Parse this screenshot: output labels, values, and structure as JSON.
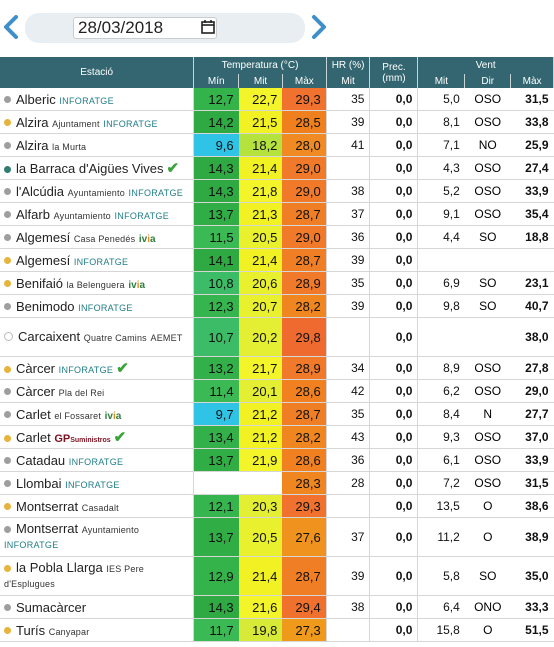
{
  "toolbar": {
    "date_value": "28/03/2018"
  },
  "colors": {
    "header_bg": "#336670",
    "header_text": "#ffffff",
    "nav_arrow": "#3f8fc8"
  },
  "table": {
    "group_headers": {
      "station": "Estació",
      "temperature": "Temperatura (°C)",
      "humidity": "HR (%)",
      "precip": "Prec. (mm)",
      "wind": "Vent"
    },
    "sub_headers": {
      "t_min": "Mín",
      "t_mid": "Mit",
      "t_max": "Màx",
      "hr_mid": "Mit",
      "w_mid": "Mit",
      "w_dir": "Dir",
      "w_max": "Màx"
    },
    "rows": [
      {
        "name": "Alberic",
        "sub": "",
        "brand": "INFORATGE",
        "dot": "#9e9e9e",
        "check": false,
        "tmin": "12,7",
        "tmid": "22,7",
        "tmax": "29,3",
        "hr": "35",
        "prec": "0,0",
        "wmid": "5,0",
        "wdir": "OSO",
        "wmax": "31,5",
        "cmin": "#34b34a",
        "cmid": "#f4f42a",
        "cmax": "#f0722e"
      },
      {
        "name": "Alzira",
        "sub": "Ajuntament",
        "brand": "INFORATGE",
        "dot": "#e6b43a",
        "check": false,
        "tmin": "14,2",
        "tmid": "21,5",
        "tmax": "28,5",
        "hr": "39",
        "prec": "0,0",
        "wmid": "8,1",
        "wdir": "OSO",
        "wmax": "33,8",
        "cmin": "#2fa942",
        "cmid": "#f1f124",
        "cmax": "#f0801e"
      },
      {
        "name": "Alzira",
        "sub": "la Murta",
        "brand": "",
        "dot": "#9e9e9e",
        "check": false,
        "tmin": "9,6",
        "tmid": "18,2",
        "tmax": "28,0",
        "hr": "41",
        "prec": "0,0",
        "wmid": "7,1",
        "wdir": "NO",
        "wmax": "25,9",
        "cmin": "#2fc4e6",
        "cmid": "#b6e23e",
        "cmax": "#f08a22"
      },
      {
        "name": "la Barraca d'Aigües Vives",
        "sub": "",
        "brand": "",
        "dot": "#2e7d6f",
        "check": true,
        "tmin": "14,3",
        "tmid": "21,4",
        "tmax": "29,0",
        "hr": "",
        "prec": "0,0",
        "wmid": "4,3",
        "wdir": "OSO",
        "wmax": "27,4",
        "cmin": "#2fa942",
        "cmid": "#f1f124",
        "cmax": "#f07a2a"
      },
      {
        "name": "l'Alcúdia",
        "sub": "Ayuntamiento",
        "brand": "INFORATGE",
        "dot": "#9e9e9e",
        "check": false,
        "tmin": "14,3",
        "tmid": "21,8",
        "tmax": "29,0",
        "hr": "38",
        "prec": "0,0",
        "wmid": "5,2",
        "wdir": "OSO",
        "wmax": "33,9",
        "cmin": "#2fa942",
        "cmid": "#f4f42a",
        "cmax": "#f07a2a"
      },
      {
        "name": "Alfarb",
        "sub": "Ayuntamiento",
        "brand": "INFORATGE",
        "dot": "#9e9e9e",
        "check": false,
        "tmin": "13,7",
        "tmid": "21,3",
        "tmax": "28,7",
        "hr": "37",
        "prec": "0,0",
        "wmid": "9,1",
        "wdir": "OSO",
        "wmax": "35,4",
        "cmin": "#31ad45",
        "cmid": "#f1f124",
        "cmax": "#f07e24"
      },
      {
        "name": "Algemesí",
        "sub": "Casa Penedés",
        "brand": "ivia",
        "dot": "#9e9e9e",
        "check": false,
        "tmin": "11,5",
        "tmid": "20,5",
        "tmax": "29,0",
        "hr": "36",
        "prec": "0,0",
        "wmid": "4,4",
        "wdir": "SO",
        "wmax": "18,8",
        "cmin": "#3ab954",
        "cmid": "#e9f02e",
        "cmax": "#f07a2a"
      },
      {
        "name": "Algemesí",
        "sub": "",
        "brand": "INFORATGE",
        "dot": "#e6b43a",
        "check": false,
        "tmin": "14,1",
        "tmid": "21,4",
        "tmax": "28,7",
        "hr": "39",
        "prec": "0,0",
        "wmid": "",
        "wdir": "",
        "wmax": "",
        "cmin": "#2fa942",
        "cmid": "#f1f124",
        "cmax": "#f07e24"
      },
      {
        "name": "Benifaió",
        "sub": "la Belenguera",
        "brand": "ivia",
        "dot": "#e6b43a",
        "check": false,
        "tmin": "10,8",
        "tmid": "20,6",
        "tmax": "28,9",
        "hr": "35",
        "prec": "0,0",
        "wmid": "6,9",
        "wdir": "SO",
        "wmax": "23,1",
        "cmin": "#3cbc66",
        "cmid": "#e9f02e",
        "cmax": "#f07a2a"
      },
      {
        "name": "Benimodo",
        "sub": "",
        "brand": "INFORATGE",
        "dot": "#9e9e9e",
        "check": false,
        "tmin": "12,3",
        "tmid": "20,7",
        "tmax": "28,2",
        "hr": "39",
        "prec": "0,0",
        "wmid": "9,8",
        "wdir": "SO",
        "wmax": "40,7",
        "cmin": "#36b54e",
        "cmid": "#e9f02e",
        "cmax": "#f08620"
      },
      {
        "name": "Carcaixent",
        "sub": "Quatre Camins",
        "brand": "AEMET",
        "dot": "#ffffff",
        "check": false,
        "tmin": "10,7",
        "tmid": "20,2",
        "tmax": "29,8",
        "hr": "",
        "prec": "0,0",
        "wmid": "",
        "wdir": "",
        "wmax": "38,0",
        "cmin": "#3cbc66",
        "cmid": "#e4ee32",
        "cmax": "#ef6a2e"
      },
      {
        "name": "Càrcer",
        "sub": "",
        "brand": "INFORATGE",
        "dot": "#e6b43a",
        "check": true,
        "tmin": "13,2",
        "tmid": "21,7",
        "tmax": "28,9",
        "hr": "34",
        "prec": "0,0",
        "wmid": "8,9",
        "wdir": "OSO",
        "wmax": "27,8",
        "cmin": "#33b04a",
        "cmid": "#f4f42a",
        "cmax": "#f07a2a"
      },
      {
        "name": "Càrcer",
        "sub": "Pla del Rei",
        "brand": "",
        "dot": "#9e9e9e",
        "check": false,
        "tmin": "11,4",
        "tmid": "20,1",
        "tmax": "28,6",
        "hr": "42",
        "prec": "0,0",
        "wmid": "6,2",
        "wdir": "OSO",
        "wmax": "29,0",
        "cmin": "#3ab954",
        "cmid": "#e4ee32",
        "cmax": "#f08020"
      },
      {
        "name": "Carlet",
        "sub": "el Fossaret",
        "brand": "ivia",
        "dot": "#9e9e9e",
        "check": false,
        "tmin": "9,7",
        "tmid": "21,2",
        "tmax": "28,7",
        "hr": "35",
        "prec": "0,0",
        "wmid": "8,4",
        "wdir": "N",
        "wmax": "27,7",
        "cmin": "#2fc4e6",
        "cmid": "#f1f124",
        "cmax": "#f07e24"
      },
      {
        "name": "Carlet",
        "sub": "",
        "brand": "GP",
        "dot": "#e6b43a",
        "check": true,
        "tmin": "13,4",
        "tmid": "21,2",
        "tmax": "28,2",
        "hr": "43",
        "prec": "0,0",
        "wmid": "9,3",
        "wdir": "OSO",
        "wmax": "37,0",
        "cmin": "#33b04a",
        "cmid": "#f1f124",
        "cmax": "#f08620"
      },
      {
        "name": "Catadau",
        "sub": "",
        "brand": "INFORATGE",
        "dot": "#9e9e9e",
        "check": false,
        "tmin": "13,7",
        "tmid": "21,9",
        "tmax": "28,6",
        "hr": "36",
        "prec": "0,0",
        "wmid": "6,1",
        "wdir": "OSO",
        "wmax": "33,9",
        "cmin": "#31ad45",
        "cmid": "#f4f42a",
        "cmax": "#f08020"
      },
      {
        "name": "Llombai",
        "sub": "",
        "brand": "INFORATGE",
        "dot": "#9e9e9e",
        "check": false,
        "tmin": "",
        "tmid": "",
        "tmax": "28,3",
        "hr": "28",
        "prec": "0,0",
        "wmid": "7,2",
        "wdir": "OSO",
        "wmax": "31,5",
        "cmin": "#ffffff",
        "cmid": "#ffffff",
        "cmax": "#f08620"
      },
      {
        "name": "Montserrat",
        "sub": "Casadalt",
        "brand": "",
        "dot": "#e6b43a",
        "check": false,
        "tmin": "12,1",
        "tmid": "20,3",
        "tmax": "29,3",
        "hr": "",
        "prec": "0,0",
        "wmid": "13,5",
        "wdir": "O",
        "wmax": "38,6",
        "cmin": "#36b54e",
        "cmid": "#e4ee32",
        "cmax": "#f0722e"
      },
      {
        "name": "Montserrat",
        "sub": "Ayuntamiento",
        "brand": "INFORATGE",
        "dot": "#9e9e9e",
        "check": false,
        "tmin": "13,7",
        "tmid": "20,5",
        "tmax": "27,6",
        "hr": "37",
        "prec": "0,0",
        "wmid": "11,2",
        "wdir": "O",
        "wmax": "38,9",
        "cmin": "#31ad45",
        "cmid": "#e9f02e",
        "cmax": "#f0921e"
      },
      {
        "name": "la Pobla Llarga",
        "sub": "IES Pere d'Esplugues",
        "brand": "",
        "dot": "#e6b43a",
        "check": false,
        "tmin": "12,9",
        "tmid": "21,4",
        "tmax": "28,7",
        "hr": "39",
        "prec": "0,0",
        "wmid": "5,8",
        "wdir": "SO",
        "wmax": "35,0",
        "cmin": "#34b34a",
        "cmid": "#f1f124",
        "cmax": "#f07e24"
      },
      {
        "name": "Sumacàrcer",
        "sub": "",
        "brand": "",
        "dot": "#9e9e9e",
        "check": false,
        "tmin": "14,3",
        "tmid": "21,6",
        "tmax": "29,4",
        "hr": "38",
        "prec": "0,0",
        "wmid": "6,4",
        "wdir": "ONO",
        "wmax": "33,3",
        "cmin": "#2fa942",
        "cmid": "#f4f42a",
        "cmax": "#f0702e"
      },
      {
        "name": "Turís",
        "sub": "Canyapar",
        "brand": "",
        "dot": "#e6b43a",
        "check": false,
        "tmin": "11,7",
        "tmid": "19,8",
        "tmax": "27,3",
        "hr": "",
        "prec": "0,0",
        "wmid": "15,8",
        "wdir": "O",
        "wmax": "51,5",
        "cmin": "#3ab954",
        "cmid": "#d8ea38",
        "cmax": "#f09a1c"
      }
    ]
  }
}
